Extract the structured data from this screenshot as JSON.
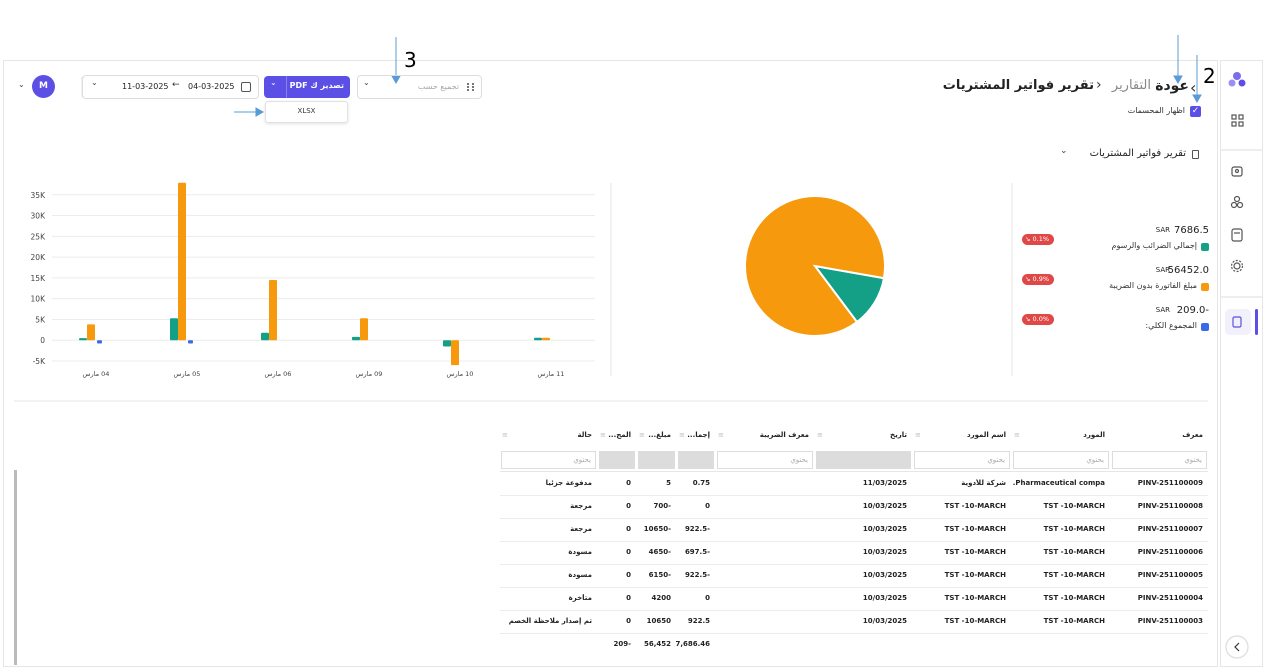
{
  "annotations": [
    "2",
    "3"
  ],
  "header": {
    "back": "عودة",
    "breadcrumb": "التقارير",
    "title": "تقرير فواتير المشتريات",
    "show_label": "اظهار المحسمات"
  },
  "toolbar": {
    "group_by": "تجميع حسب",
    "export": "تصدير ك PDF",
    "export_option": "XLSX",
    "date_from": "04-03-2025",
    "date_to": "11-03-2025",
    "avatar": "M"
  },
  "report_title": "تقرير فواتير المشتريات",
  "chart_data": [
    {
      "type": "bar",
      "categories": [
        "04 مارس",
        "05 مارس",
        "06 مارس",
        "09 مارس",
        "10 مارس",
        "11 مارس"
      ],
      "series": [
        {
          "color": "#13a087",
          "values": [
            500,
            5300,
            1800,
            800,
            -1500,
            600
          ]
        },
        {
          "color": "#f6990c",
          "values": [
            3800,
            37900,
            14500,
            5300,
            -6000,
            600
          ]
        },
        {
          "color": "#3b6ae6",
          "values": [
            -800,
            -800,
            0,
            0,
            0,
            0
          ]
        }
      ],
      "ylim": [
        -5000,
        40000
      ],
      "yticks": [
        {
          "value": -5000,
          "label": "-5K"
        },
        0,
        {
          "value": 5000,
          "label": "5K"
        },
        {
          "value": 10000,
          "label": "10K"
        },
        {
          "value": 15000,
          "label": "15K"
        },
        {
          "value": 20000,
          "label": "20K"
        },
        {
          "value": 25000,
          "label": "25K"
        },
        {
          "value": 30000,
          "label": "30K"
        },
        {
          "value": 35000,
          "label": "35K"
        }
      ],
      "grid": true
    },
    {
      "type": "pie",
      "categories": [
        "إجمالي الضرائب والرسوم",
        "مبلغ الفاتورة بدون الضريبة",
        "المجموع الكلي:"
      ],
      "values": [
        7686.5,
        56452,
        -209
      ],
      "value_labels": [
        "7686.5",
        "56452.0",
        "-209.0"
      ],
      "colors": [
        "#13a087",
        "#f6990c",
        "#3b6ae6"
      ]
    }
  ],
  "summary": {
    "currency": "SAR",
    "changes": [
      "0.1%",
      "0.9%",
      "0.0%"
    ]
  },
  "table": {
    "columns": [
      "معرف",
      "المورد",
      "اسم المورد",
      "تاريخ",
      "معرف الضريبة",
      "إجما...",
      "مبلغ...",
      "المج...",
      "حالة"
    ],
    "filter_placeholder": "يحتوي",
    "rows": [
      [
        "PINV-251100009",
        "Pharmaceutical compa...",
        "شركة للأدوية",
        "11/03/2025",
        null,
        "0.75",
        "5",
        "0",
        "مدفوعة جزئيا"
      ],
      [
        "PINV-251100008",
        "TST -10-MARCH",
        "TST -10-MARCH",
        "10/03/2025",
        null,
        "0",
        "-700",
        "0",
        "مرجعة"
      ],
      [
        "PINV-251100007",
        "TST -10-MARCH",
        "TST -10-MARCH",
        "10/03/2025",
        null,
        "-922.5",
        "-10650",
        "0",
        "مرجعة"
      ],
      [
        "PINV-251100006",
        "TST -10-MARCH",
        "TST -10-MARCH",
        "10/03/2025",
        null,
        "-697.5",
        "-4650",
        "0",
        "مسودة"
      ],
      [
        "PINV-251100005",
        "TST -10-MARCH",
        "TST -10-MARCH",
        "10/03/2025",
        null,
        "-922.5",
        "-6150",
        "0",
        "مسودة"
      ],
      [
        "PINV-251100004",
        "TST -10-MARCH",
        "TST -10-MARCH",
        "10/03/2025",
        null,
        "0",
        "4200",
        "0",
        "متأخرة"
      ],
      [
        "PINV-251100003",
        "TST -10-MARCH",
        "TST -10-MARCH",
        "10/03/2025",
        null,
        "922.5",
        "10650",
        "0",
        "تم إصدار ملاحظة الخصم"
      ]
    ],
    "totals": [
      null,
      null,
      null,
      null,
      null,
      "7,686.46",
      "56,452",
      "-209",
      null
    ]
  }
}
